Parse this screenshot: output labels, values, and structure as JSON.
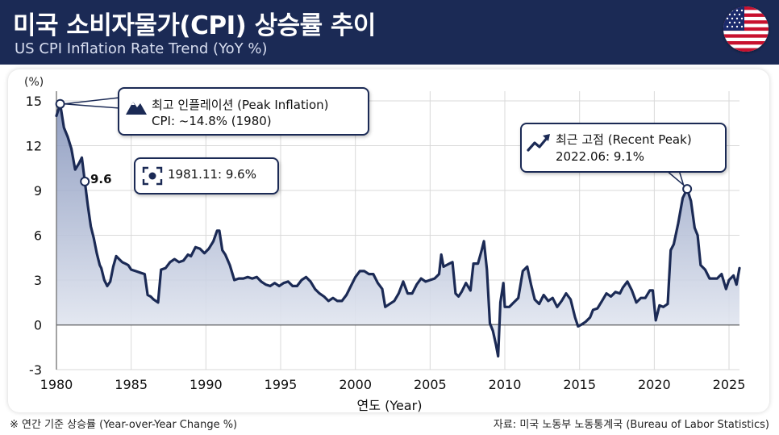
{
  "header": {
    "title": "미국 소비자물가(CPI) 상승률 추이",
    "subtitle": "US CPI Inflation Rate Trend (YoY %)",
    "flag_icon": "us-flag-icon"
  },
  "colors": {
    "header_bg": "#1b2a55",
    "line": "#1b2a55",
    "area_top": "#8e9cc0",
    "area_bottom": "#eef1f7",
    "grid": "#d9d9d9"
  },
  "annotations": {
    "peak": {
      "title": "최고 인플레이션 (Peak Inflation)",
      "value": "CPI: ~14.8% (1980)",
      "icon": "mountain-icon"
    },
    "early": {
      "label": "9.6",
      "text": "1981.11: 9.6%",
      "icon": "focus-icon"
    },
    "recent": {
      "title": "최근 고점 (Recent Peak)",
      "value": "2022.06: 9.1%",
      "icon": "trend-up-icon"
    }
  },
  "footer": {
    "note": "※ 연간 기준 상승률 (Year-over-Year Change %)",
    "source": "자료: 미국 노동부 노동통계국 (Bureau of Labor Statistics)"
  },
  "chart_data": {
    "type": "area",
    "title": "미국 소비자물가(CPI) 상승률 추이",
    "subtitle": "US CPI Inflation Rate Trend (YoY %)",
    "xlabel": "연도 (Year)",
    "ylabel": "(%)",
    "xlim": [
      1980,
      2025.7
    ],
    "ylim": [
      -3,
      15
    ],
    "x_ticks": [
      "1980",
      "1985",
      "1990",
      "1995",
      "2000",
      "2005",
      "2010",
      "2015",
      "2020",
      "2025"
    ],
    "y_ticks": [
      "-3",
      "0",
      "3",
      "6",
      "9",
      "12",
      "15"
    ],
    "grid": true,
    "x": [
      1980.0,
      1980.25,
      1980.5,
      1980.75,
      1981.0,
      1981.25,
      1981.5,
      1981.7,
      1981.9,
      1982.1,
      1982.3,
      1982.5,
      1982.7,
      1982.9,
      1983.0,
      1983.2,
      1983.4,
      1983.6,
      1983.8,
      1984.0,
      1984.2,
      1984.4,
      1984.6,
      1984.8,
      1985.0,
      1985.3,
      1985.6,
      1985.9,
      1986.1,
      1986.3,
      1986.5,
      1986.8,
      1987.0,
      1987.3,
      1987.6,
      1987.9,
      1988.2,
      1988.5,
      1988.8,
      1989.0,
      1989.3,
      1989.6,
      1989.9,
      1990.2,
      1990.5,
      1990.75,
      1990.9,
      1991.1,
      1991.3,
      1991.6,
      1991.9,
      1992.2,
      1992.5,
      1992.8,
      1993.1,
      1993.4,
      1993.7,
      1994.0,
      1994.3,
      1994.6,
      1994.9,
      1995.2,
      1995.5,
      1995.8,
      1996.1,
      1996.4,
      1996.7,
      1997.0,
      1997.3,
      1997.6,
      1997.9,
      1998.2,
      1998.5,
      1998.8,
      1999.1,
      1999.4,
      1999.7,
      2000.0,
      2000.3,
      2000.6,
      2000.9,
      2001.2,
      2001.5,
      2001.8,
      2002.0,
      2002.3,
      2002.6,
      2002.9,
      2003.2,
      2003.5,
      2003.8,
      2004.1,
      2004.4,
      2004.7,
      2005.0,
      2005.3,
      2005.6,
      2005.75,
      2005.9,
      2006.1,
      2006.3,
      2006.5,
      2006.7,
      2006.9,
      2007.1,
      2007.4,
      2007.7,
      2007.9,
      2008.2,
      2008.45,
      2008.6,
      2008.8,
      2009.0,
      2009.2,
      2009.4,
      2009.55,
      2009.7,
      2009.9,
      2010.0,
      2010.3,
      2010.6,
      2010.9,
      2011.2,
      2011.5,
      2011.75,
      2012.0,
      2012.3,
      2012.6,
      2012.9,
      2013.2,
      2013.5,
      2013.8,
      2014.1,
      2014.4,
      2014.7,
      2014.9,
      2015.1,
      2015.4,
      2015.7,
      2015.9,
      2016.2,
      2016.5,
      2016.8,
      2017.1,
      2017.4,
      2017.7,
      2017.9,
      2018.2,
      2018.5,
      2018.8,
      2019.1,
      2019.4,
      2019.7,
      2019.9,
      2020.1,
      2020.35,
      2020.6,
      2020.9,
      2021.1,
      2021.3,
      2021.6,
      2021.9,
      2022.2,
      2022.45,
      2022.7,
      2022.9,
      2023.1,
      2023.4,
      2023.7,
      2023.9,
      2024.2,
      2024.5,
      2024.8,
      2025.0,
      2025.3,
      2025.5,
      2025.7
    ],
    "series": [
      {
        "values": [
          14.0,
          14.8,
          13.2,
          12.6,
          11.8,
          10.4,
          10.8,
          11.2,
          9.6,
          8.0,
          6.6,
          5.8,
          4.8,
          4.0,
          3.8,
          3.0,
          2.6,
          2.9,
          3.9,
          4.6,
          4.4,
          4.2,
          4.1,
          4.0,
          3.7,
          3.6,
          3.5,
          3.4,
          2.0,
          1.9,
          1.7,
          1.5,
          3.7,
          3.8,
          4.2,
          4.4,
          4.2,
          4.3,
          4.7,
          4.6,
          5.2,
          5.1,
          4.8,
          5.1,
          5.6,
          6.3,
          6.3,
          5.0,
          4.7,
          4.0,
          3.0,
          3.1,
          3.1,
          3.2,
          3.1,
          3.2,
          2.9,
          2.7,
          2.6,
          2.8,
          2.6,
          2.8,
          2.9,
          2.6,
          2.6,
          3.0,
          3.2,
          2.9,
          2.4,
          2.1,
          1.9,
          1.6,
          1.8,
          1.6,
          1.6,
          2.0,
          2.6,
          3.2,
          3.6,
          3.6,
          3.4,
          3.4,
          2.8,
          2.4,
          1.2,
          1.4,
          1.6,
          2.1,
          2.9,
          2.1,
          2.1,
          2.7,
          3.1,
          2.9,
          3.0,
          3.1,
          3.4,
          4.7,
          3.9,
          4.0,
          4.1,
          4.2,
          2.1,
          1.9,
          2.2,
          2.8,
          2.3,
          4.1,
          4.1,
          5.0,
          5.6,
          3.7,
          0.1,
          -0.4,
          -1.3,
          -2.1,
          1.5,
          2.8,
          1.2,
          1.2,
          1.5,
          1.8,
          3.6,
          3.9,
          2.7,
          1.7,
          1.4,
          2.0,
          1.6,
          1.8,
          1.2,
          1.6,
          2.1,
          1.7,
          0.5,
          -0.1,
          0.0,
          0.2,
          0.5,
          1.0,
          1.1,
          1.6,
          2.1,
          1.9,
          2.2,
          2.1,
          2.5,
          2.9,
          2.3,
          1.5,
          1.8,
          1.8,
          2.3,
          2.3,
          0.3,
          1.3,
          1.2,
          1.4,
          5.0,
          5.4,
          6.8,
          8.5,
          9.1,
          8.3,
          6.5,
          6.0,
          4.0,
          3.7,
          3.1,
          3.1,
          3.1,
          3.4,
          2.4,
          3.0,
          3.3,
          2.7,
          3.8
        ]
      }
    ]
  }
}
